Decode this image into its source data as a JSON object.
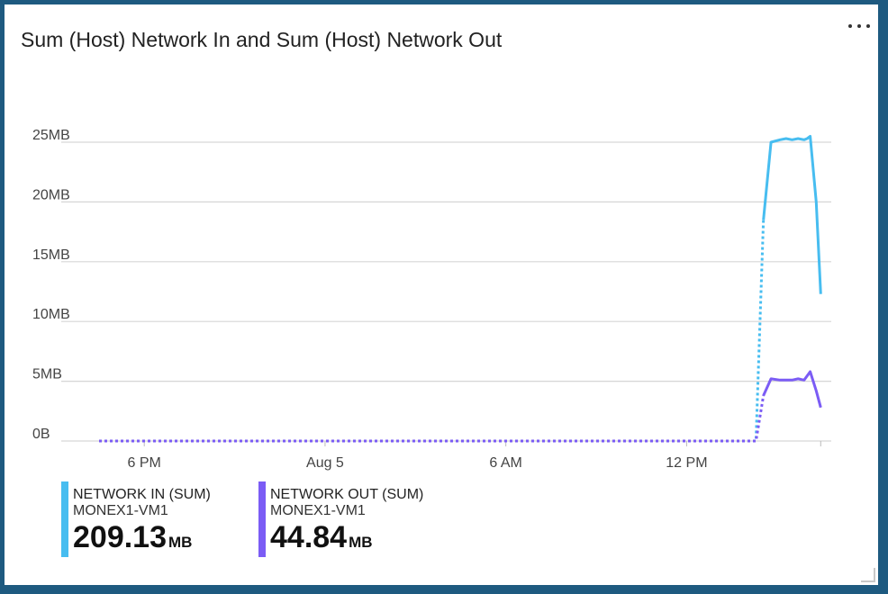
{
  "tile": {
    "title": "Sum (Host) Network In and Sum (Host) Network Out",
    "menu_icon": "ellipsis-icon",
    "resize_icon": "resize-handle-icon"
  },
  "chart_data": {
    "type": "line",
    "title": "Sum (Host) Network In and Sum (Host) Network Out",
    "xlabel": "",
    "ylabel": "",
    "y_ticks": [
      "25MB",
      "20MB",
      "15MB",
      "10MB",
      "5MB",
      "0B"
    ],
    "y_tick_values": [
      25,
      20,
      15,
      10,
      5,
      0
    ],
    "ylim": [
      0,
      25
    ],
    "y_unit": "MB",
    "x_ticks": [
      "6 PM",
      "Aug 5",
      "6 AM",
      "12 PM"
    ],
    "x_tick_hours": [
      18,
      24,
      30,
      36
    ],
    "xlim_hours": [
      16.5,
      40.8
    ],
    "grid": true,
    "series": [
      {
        "name": "NETWORK IN (SUM)",
        "resource": "MONEX1-VM1",
        "color": "#47bdf0",
        "missing_data": [
          [
            16.5,
            0
          ],
          [
            38.3,
            0
          ],
          [
            38.55,
            18.5
          ]
        ],
        "values": [
          [
            38.55,
            18.5
          ],
          [
            38.8,
            25.0
          ],
          [
            39.1,
            25.2
          ],
          [
            39.3,
            25.3
          ],
          [
            39.5,
            25.2
          ],
          [
            39.7,
            25.3
          ],
          [
            39.9,
            25.2
          ],
          [
            40.0,
            25.3
          ],
          [
            40.1,
            25.5
          ],
          [
            40.3,
            20.0
          ],
          [
            40.45,
            12.3
          ]
        ]
      },
      {
        "name": "NETWORK OUT (SUM)",
        "resource": "MONEX1-VM1",
        "color": "#7b5cf5",
        "missing_data": [
          [
            16.5,
            0
          ],
          [
            38.3,
            0
          ],
          [
            38.55,
            3.8
          ]
        ],
        "values": [
          [
            38.55,
            3.8
          ],
          [
            38.8,
            5.2
          ],
          [
            39.1,
            5.1
          ],
          [
            39.3,
            5.1
          ],
          [
            39.5,
            5.1
          ],
          [
            39.7,
            5.2
          ],
          [
            39.9,
            5.1
          ],
          [
            40.1,
            5.8
          ],
          [
            40.3,
            4.2
          ],
          [
            40.45,
            2.8
          ]
        ]
      }
    ]
  },
  "legend": [
    {
      "name": "NETWORK IN (SUM)",
      "resource": "MONEX1-VM1",
      "value": "209.13",
      "unit": "MB",
      "color": "#47bdf0"
    },
    {
      "name": "NETWORK OUT (SUM)",
      "resource": "MONEX1-VM1",
      "value": "44.84",
      "unit": "MB",
      "color": "#7b5cf5"
    }
  ]
}
